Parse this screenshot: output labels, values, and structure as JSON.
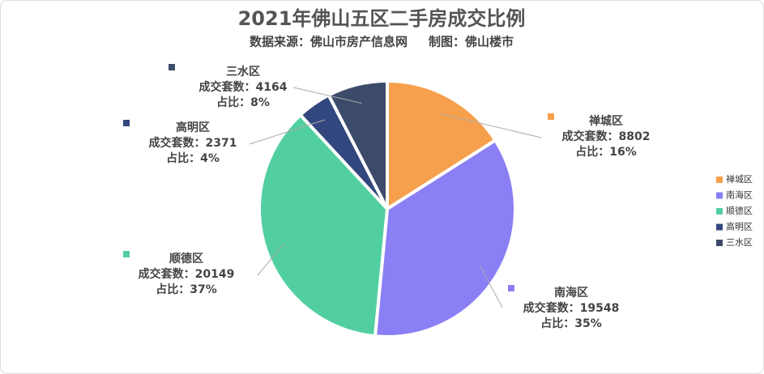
{
  "chart_data": {
    "type": "pie",
    "title": "2021年佛山五区二手房成交比例",
    "subtitle": "数据来源：佛山市房产信息网     制图：佛山楼市",
    "categories": [
      "禅城区",
      "南海区",
      "顺德区",
      "高明区",
      "三水区"
    ],
    "values": [
      8802,
      19548,
      20149,
      2371,
      4164
    ],
    "value_labels": [
      "成交套数：8802",
      "成交套数：19548",
      "成交套数：20149",
      "成交套数：2371",
      "成交套数：4164"
    ],
    "share_labels": [
      "占比：16%",
      "占比：35%",
      "占比：37%",
      "占比：4%",
      "占比：8%"
    ],
    "colors": [
      "#f6a04d",
      "#8a7ff5",
      "#52cfa0",
      "#33477f",
      "#3d4b6b"
    ],
    "legend": "right"
  }
}
